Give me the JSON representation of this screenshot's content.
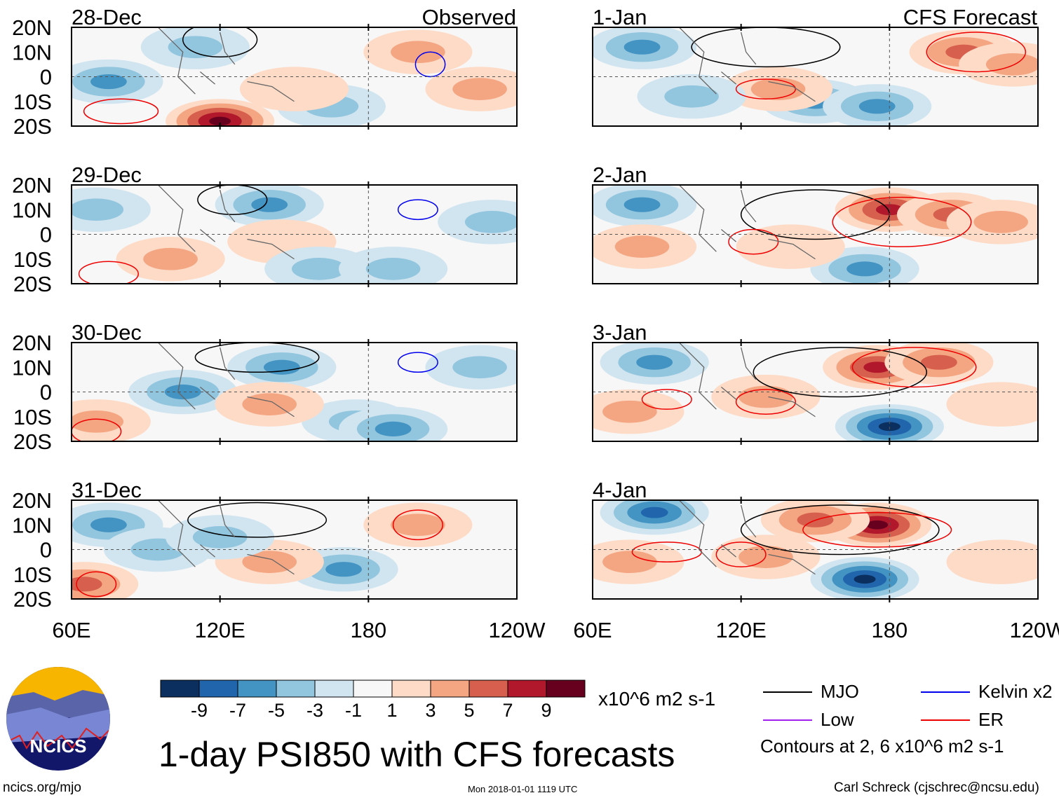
{
  "chart_data": {
    "type": "heatmap",
    "title": "1-day PSI850 with CFS forecasts",
    "units": "x10^6 m2 s-1",
    "column_titles": [
      "Observed",
      "CFS Forecast"
    ],
    "lat_ticks": [
      "20N",
      "10N",
      "0",
      "10S",
      "20S"
    ],
    "lon_ticks": [
      "60E",
      "120E",
      "180",
      "120W"
    ],
    "lon_range": [
      60,
      240
    ],
    "lat_range": [
      -20,
      20
    ],
    "colorbar": {
      "ticks": [
        "-9",
        "-7",
        "-5",
        "-3",
        "-1",
        "1",
        "3",
        "5",
        "7",
        "9"
      ],
      "colors": [
        "#0b2f5e",
        "#2166ac",
        "#4393c3",
        "#92c5de",
        "#d1e5f0",
        "#f7f7f7",
        "#fddbc7",
        "#f4a582",
        "#d6604d",
        "#b2182b",
        "#67001f"
      ]
    },
    "legend": [
      {
        "label": "MJO",
        "color": "#000000"
      },
      {
        "label": "Kelvin x2",
        "color": "#0000ee"
      },
      {
        "label": "Low",
        "color": "#a020f0"
      },
      {
        "label": "ER",
        "color": "#ee0000"
      }
    ],
    "contour_note": "Contours at 2, 6 x10^6 m2 s-1",
    "panels": [
      {
        "date": "28-Dec",
        "col": 0,
        "row": 0,
        "blobs": [
          [
            75,
            -2,
            -5
          ],
          [
            110,
            12,
            -3
          ],
          [
            165,
            -12,
            -3
          ],
          [
            200,
            10,
            3
          ],
          [
            225,
            -5,
            3
          ],
          [
            120,
            -18,
            9
          ],
          [
            150,
            -5,
            2
          ]
        ],
        "contours": [
          [
            120,
            15,
            15,
            7,
            "#000000"
          ],
          [
            205,
            5,
            6,
            5,
            "#0000ee"
          ],
          [
            80,
            -14,
            15,
            5,
            "#ee0000"
          ]
        ]
      },
      {
        "date": "29-Dec",
        "col": 0,
        "row": 1,
        "blobs": [
          [
            70,
            10,
            -3
          ],
          [
            140,
            12,
            -5
          ],
          [
            230,
            5,
            -3
          ],
          [
            100,
            -10,
            3
          ],
          [
            145,
            -3,
            2
          ],
          [
            160,
            -14,
            -3
          ],
          [
            190,
            -14,
            -3
          ]
        ],
        "contours": [
          [
            125,
            14,
            14,
            6,
            "#000000"
          ],
          [
            200,
            10,
            8,
            4,
            "#0000ee"
          ],
          [
            75,
            -16,
            12,
            5,
            "#ee0000"
          ]
        ]
      },
      {
        "date": "30-Dec",
        "col": 0,
        "row": 2,
        "blobs": [
          [
            105,
            0,
            -5
          ],
          [
            145,
            10,
            -5
          ],
          [
            175,
            -12,
            -3
          ],
          [
            190,
            -15,
            -5
          ],
          [
            140,
            -5,
            3
          ],
          [
            70,
            -12,
            3
          ],
          [
            225,
            10,
            -3
          ]
        ],
        "contours": [
          [
            135,
            14,
            25,
            6,
            "#000000"
          ],
          [
            200,
            12,
            8,
            4,
            "#0000ee"
          ],
          [
            70,
            -16,
            10,
            5,
            "#ee0000"
          ]
        ]
      },
      {
        "date": "31-Dec",
        "col": 0,
        "row": 3,
        "blobs": [
          [
            75,
            10,
            -5
          ],
          [
            95,
            0,
            -3
          ],
          [
            170,
            -8,
            -5
          ],
          [
            200,
            10,
            3
          ],
          [
            140,
            -5,
            3
          ],
          [
            65,
            -14,
            5
          ],
          [
            120,
            5,
            -3
          ]
        ],
        "contours": [
          [
            135,
            12,
            28,
            7,
            "#000000"
          ],
          [
            200,
            10,
            10,
            6,
            "#ee0000"
          ],
          [
            70,
            -14,
            8,
            5,
            "#ee0000"
          ]
        ]
      },
      {
        "date": "1-Jan",
        "col": 1,
        "row": 0,
        "blobs": [
          [
            80,
            12,
            -5
          ],
          [
            150,
            -10,
            -5
          ],
          [
            175,
            -12,
            -5
          ],
          [
            210,
            10,
            5
          ],
          [
            230,
            5,
            3
          ],
          [
            135,
            -5,
            3
          ],
          [
            100,
            -8,
            -3
          ]
        ],
        "contours": [
          [
            130,
            12,
            30,
            8,
            "#000000"
          ],
          [
            215,
            10,
            20,
            8,
            "#ee0000"
          ],
          [
            130,
            -5,
            12,
            4,
            "#ee0000"
          ]
        ]
      },
      {
        "date": "2-Jan",
        "col": 1,
        "row": 1,
        "blobs": [
          [
            80,
            12,
            -5
          ],
          [
            170,
            -14,
            -5
          ],
          [
            180,
            10,
            7
          ],
          [
            205,
            8,
            5
          ],
          [
            80,
            -5,
            3
          ],
          [
            140,
            -5,
            2
          ],
          [
            225,
            5,
            3
          ]
        ],
        "contours": [
          [
            150,
            8,
            30,
            10,
            "#000000"
          ],
          [
            185,
            5,
            28,
            10,
            "#ee0000"
          ],
          [
            125,
            -3,
            10,
            5,
            "#ee0000"
          ]
        ]
      },
      {
        "date": "3-Jan",
        "col": 1,
        "row": 2,
        "blobs": [
          [
            85,
            12,
            -5
          ],
          [
            180,
            -14,
            -9
          ],
          [
            175,
            10,
            7
          ],
          [
            200,
            12,
            5
          ],
          [
            75,
            -8,
            3
          ],
          [
            130,
            -2,
            3
          ],
          [
            225,
            -5,
            2
          ]
        ],
        "contours": [
          [
            160,
            8,
            35,
            10,
            "#000000"
          ],
          [
            190,
            10,
            25,
            8,
            "#ee0000"
          ],
          [
            130,
            -4,
            12,
            5,
            "#ee0000"
          ],
          [
            90,
            -3,
            10,
            4,
            "#ee0000"
          ]
        ]
      },
      {
        "date": "4-Jan",
        "col": 1,
        "row": 3,
        "blobs": [
          [
            85,
            15,
            -7
          ],
          [
            170,
            -12,
            -9
          ],
          [
            175,
            10,
            9
          ],
          [
            150,
            12,
            5
          ],
          [
            75,
            -5,
            3
          ],
          [
            130,
            -3,
            3
          ],
          [
            225,
            -5,
            2
          ]
        ],
        "contours": [
          [
            160,
            8,
            40,
            10,
            "#000000"
          ],
          [
            175,
            8,
            30,
            7,
            "#ee0000"
          ],
          [
            120,
            -2,
            10,
            5,
            "#ee0000"
          ],
          [
            90,
            -1,
            14,
            4,
            "#ee0000"
          ]
        ]
      }
    ]
  },
  "footer": {
    "logo_text": "NCICS",
    "site": "ncics.org/mjo",
    "timestamp": "Mon 2018-01-01 1119 UTC",
    "author": "Carl Schreck (cjschrec@ncsu.edu)"
  }
}
